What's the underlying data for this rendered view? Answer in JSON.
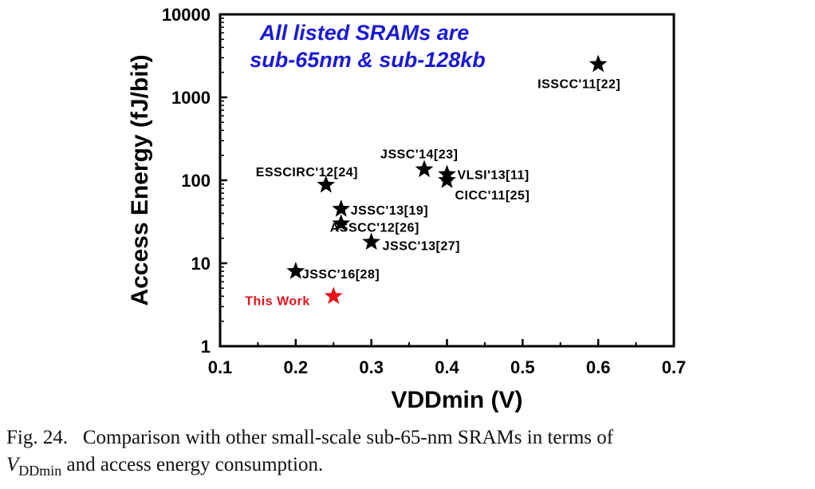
{
  "chart_data": {
    "type": "scatter",
    "xlabel": "VDDmin (V)",
    "ylabel": "Access Energy (fJ/bit)",
    "xlim": [
      0.1,
      0.7
    ],
    "ylim": [
      1,
      10000
    ],
    "yscale": "log",
    "xticks": [
      "0.1",
      "0.2",
      "0.3",
      "0.4",
      "0.5",
      "0.6",
      "0.7"
    ],
    "yticks": [
      "1",
      "10",
      "100",
      "1000",
      "10000"
    ],
    "grid": false,
    "annotation": [
      "All listed SRAMs are",
      "sub-65nm & sub-128kb"
    ],
    "annotation_color": "#1a1ad6",
    "highlight_color": "#e8121b",
    "points": [
      {
        "label": "ISSCC'11[22]",
        "x": 0.6,
        "y": 2500,
        "highlight": false
      },
      {
        "label": "JSSC'14[23]",
        "x": 0.37,
        "y": 135,
        "highlight": false
      },
      {
        "label": "VLSI'13[11]",
        "x": 0.4,
        "y": 118,
        "highlight": false
      },
      {
        "label": "CICC'11[25]",
        "x": 0.4,
        "y": 100,
        "highlight": false
      },
      {
        "label": "ESSCIRC'12[24]",
        "x": 0.24,
        "y": 88,
        "highlight": false
      },
      {
        "label": "JSSC'13[19]",
        "x": 0.26,
        "y": 45,
        "highlight": false
      },
      {
        "label": "ASSCC'12[26]",
        "x": 0.26,
        "y": 30,
        "highlight": false
      },
      {
        "label": "JSSC'13[27]",
        "x": 0.3,
        "y": 18,
        "highlight": false
      },
      {
        "label": "JSSC'16[28]",
        "x": 0.2,
        "y": 8,
        "highlight": false
      },
      {
        "label": "This Work",
        "x": 0.25,
        "y": 4,
        "highlight": true
      }
    ]
  },
  "caption": {
    "fig_label": "Fig. 24.",
    "line1_text": "Comparison with other small-scale sub-65-nm SRAMs in terms of",
    "v_symbol": "V",
    "v_subscript": "DDmin",
    "line2_text": " and access energy consumption."
  }
}
